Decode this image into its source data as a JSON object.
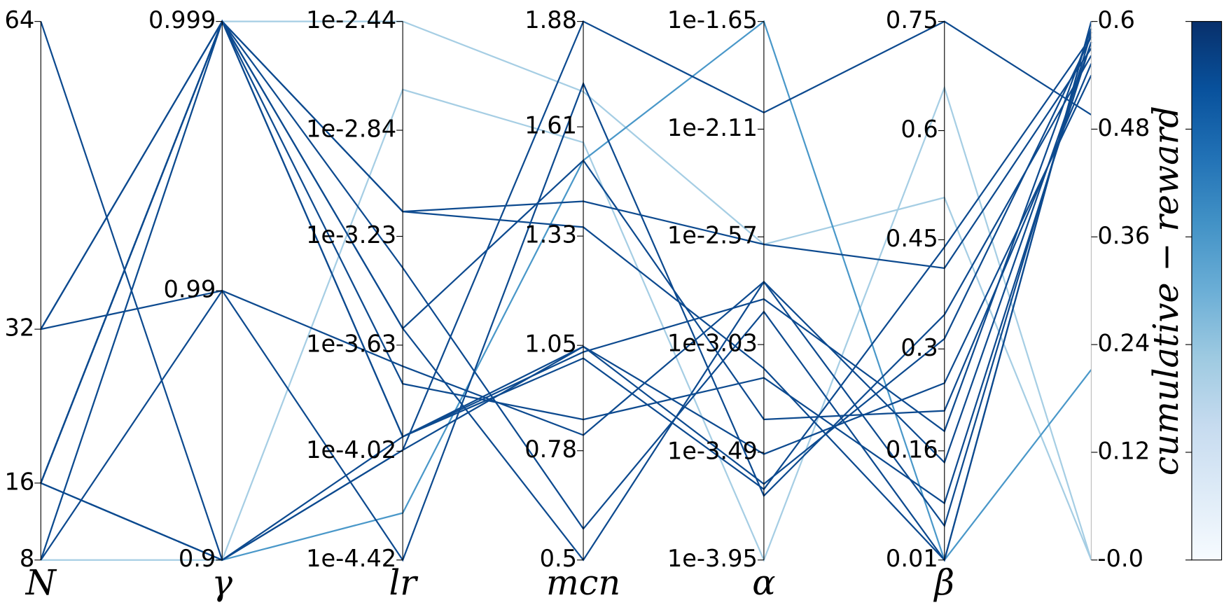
{
  "chart_data": {
    "type": "parallel",
    "axes": [
      {
        "label": "N",
        "scale": "linear",
        "lim": [
          8,
          64
        ],
        "ticks": [
          8,
          16,
          32,
          64
        ]
      },
      {
        "label": "γ",
        "scale": "log-complement",
        "lim": [
          0.9,
          0.999
        ],
        "ticks": [
          0.9,
          0.99,
          0.999
        ]
      },
      {
        "label": "lr",
        "scale": "log",
        "lim": [
          3.802e-05,
          0.003631
        ],
        "ticks": [
          {
            "value": 3.802e-05,
            "label": "1e-4.42"
          },
          {
            "value": 9.55e-05,
            "label": "1e-4.02"
          },
          {
            "value": 0.0002344,
            "label": "1e-3.63"
          },
          {
            "value": 0.0005888,
            "label": "1e-3.23"
          },
          {
            "value": 0.0014454,
            "label": "1e-2.84"
          },
          {
            "value": 0.003631,
            "label": "1e-2.44"
          }
        ]
      },
      {
        "label": "mcn",
        "scale": "linear",
        "lim": [
          0.5,
          1.88
        ],
        "ticks": [
          0.5,
          0.78,
          1.05,
          1.33,
          1.61,
          1.88
        ]
      },
      {
        "label": "α",
        "scale": "log",
        "lim": [
          0.0001122,
          0.022387
        ],
        "ticks": [
          {
            "value": 0.0001122,
            "label": "1e-3.95"
          },
          {
            "value": 0.0003236,
            "label": "1e-3.49"
          },
          {
            "value": 0.0009333,
            "label": "1e-3.03"
          },
          {
            "value": 0.002692,
            "label": "1e-2.57"
          },
          {
            "value": 0.007762,
            "label": "1e-2.11"
          },
          {
            "value": 0.022387,
            "label": "1e-1.65"
          }
        ]
      },
      {
        "label": "β",
        "scale": "linear",
        "lim": [
          0.01,
          0.75
        ],
        "ticks": [
          0.01,
          0.16,
          0.3,
          0.45,
          0.6,
          0.75
        ]
      },
      {
        "scale": "linear",
        "lim": [
          0,
          0.6
        ],
        "ticks": [
          {
            "value": 0,
            "label": "-0.0"
          },
          0.12,
          0.24,
          0.36,
          0.48,
          0.6
        ]
      }
    ],
    "series": [
      {
        "color": "#a6cee4",
        "values": [
          8,
          0.999,
          0.003631,
          1.7,
          0.0025,
          0.508,
          0
        ]
      },
      {
        "color": "#a6cee4",
        "values": [
          8,
          0.9,
          0.00204,
          1.57,
          0.0001122,
          0.659,
          0
        ]
      },
      {
        "color": "#4a98c9",
        "values": [
          16,
          0.9,
          5.66e-05,
          1.524,
          0.022387,
          0.01,
          0.212
        ]
      },
      {
        "color": "#0d4a8f",
        "values": [
          64,
          0.9,
          0.000108,
          1.047,
          0.000237,
          0.314,
          0.583
        ]
      },
      {
        "color": "#0d4a8f",
        "values": [
          16,
          0.9,
          9.64e-05,
          1.88,
          0.00914,
          0.75,
          0.496
        ]
      },
      {
        "color": "#0d4a8f",
        "values": [
          32,
          0.999,
          0.000726,
          1.419,
          0.0025,
          0.411,
          0.57
        ]
      },
      {
        "color": "#0d4a8f",
        "values": [
          16,
          0.999,
          0.000108,
          1.033,
          0.00146,
          0.187,
          0.592
        ]
      },
      {
        "color": "#0d4a8f",
        "values": [
          8,
          0.99,
          0.000196,
          0.82,
          0.00173,
          0.144,
          0.577
        ]
      },
      {
        "color": "#0d4a8f",
        "values": [
          32,
          0.99,
          3.8e-05,
          1.721,
          0.000211,
          0.347,
          0.562
        ]
      },
      {
        "color": "#0d4a8f",
        "values": [
          16,
          0.999,
          0.000451,
          0.58,
          0.00129,
          0.01,
          0.6
        ]
      },
      {
        "color": "#0d4a8f",
        "values": [
          16,
          0.999,
          0.00027,
          1.524,
          0.000447,
          0.215,
          0.553
        ]
      },
      {
        "color": "#0d4a8f",
        "values": [
          8,
          0.999,
          0.000169,
          0.86,
          0.000673,
          0.088,
          0.577
        ]
      },
      {
        "color": "#0d4a8f",
        "values": [
          32,
          0.999,
          0.000108,
          1.017,
          0.000225,
          0.44,
          0.583
        ]
      },
      {
        "color": "#0d4a8f",
        "values": [
          16,
          0.9,
          9.64e-05,
          1.047,
          0.000318,
          0.253,
          0.54
        ]
      },
      {
        "color": "#0d4a8f",
        "values": [
          16,
          0.999,
          0.00027,
          0.5,
          0.00173,
          0.057,
          0.588
        ]
      },
      {
        "color": "#0d4a8f",
        "values": [
          16,
          0.999,
          0.000726,
          1.353,
          0.000738,
          0.01,
          0.6
        ]
      }
    ],
    "colorbar": {
      "label": "cumulative − reward",
      "colormap": [
        "#f7fbff",
        "#deebf7",
        "#c6dbef",
        "#9ecae1",
        "#6baed6",
        "#4292c6",
        "#2171b5",
        "#08519c",
        "#08306b"
      ]
    }
  }
}
